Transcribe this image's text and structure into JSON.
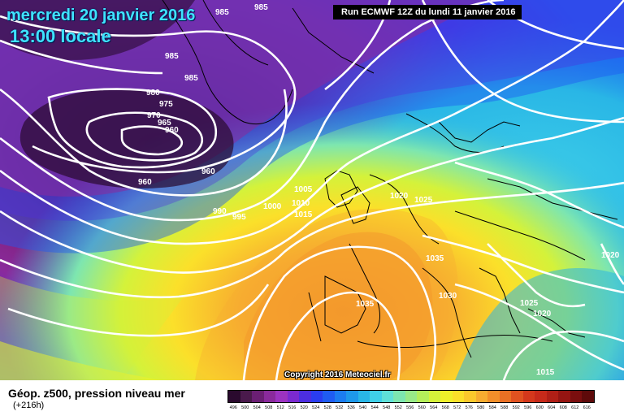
{
  "header": {
    "date": "mercredi 20 janvier 2016",
    "time": "13:00 locale",
    "run": "Run ECMWF 12Z du lundi 11 janvier 2016"
  },
  "footer": {
    "title": "Géop. z500, pression niveau mer",
    "lead": "(+216h)",
    "copyright": "Copyright 2016 Meteociel.fr"
  },
  "legend": {
    "ticks": [
      "496",
      "500",
      "504",
      "508",
      "512",
      "516",
      "520",
      "524",
      "528",
      "532",
      "536",
      "540",
      "544",
      "548",
      "552",
      "556",
      "560",
      "564",
      "568",
      "572",
      "576",
      "580",
      "584",
      "588",
      "592",
      "596",
      "600",
      "604",
      "608",
      "612",
      "616"
    ],
    "colors": [
      "#2a0a2e",
      "#4a1a4c",
      "#6b1f74",
      "#8a2a9c",
      "#9c33c1",
      "#7b2ad0",
      "#4c2ee0",
      "#2a3df0",
      "#1f5cf2",
      "#1c7cf0",
      "#1e98ea",
      "#29b6e6",
      "#3fd0e8",
      "#5fe0d8",
      "#7de6b0",
      "#98ea88",
      "#b4ee5a",
      "#d4f23a",
      "#eef02a",
      "#fbe02a",
      "#fbc82c",
      "#f7ac30",
      "#f28f2a",
      "#ea7024",
      "#e05220",
      "#d4381c",
      "#c72a1a",
      "#b01f16",
      "#951512",
      "#7a0e0e",
      "#5e0a0a"
    ]
  },
  "isobars": {
    "labels": [
      "985",
      "985",
      "985",
      "985",
      "980",
      "975",
      "970",
      "965",
      "960",
      "960",
      "960",
      "990",
      "995",
      "1000",
      "1005",
      "1010",
      "1015",
      "1020",
      "1025",
      "1020",
      "1035",
      "1030",
      "1025",
      "1020",
      "1015",
      "1035"
    ]
  },
  "map": {
    "description_colors": {
      "low_center": "#2a0a2e",
      "ridge": "#f28f2a",
      "isobar": "#ffffff",
      "coast": "#000000"
    }
  }
}
